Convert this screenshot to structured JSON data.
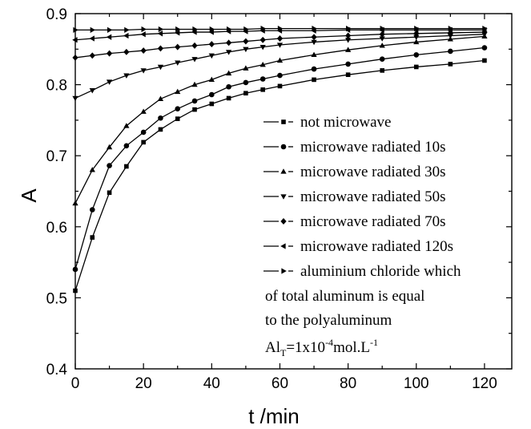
{
  "chart_data": {
    "type": "line",
    "xlabel": "t /min",
    "ylabel": "A",
    "xlim": [
      0,
      128
    ],
    "ylim": [
      0.4,
      0.9
    ],
    "xticks": [
      0,
      20,
      40,
      60,
      80,
      100,
      120
    ],
    "yticks": [
      0.4,
      0.5,
      0.6,
      0.7,
      0.8,
      0.9
    ],
    "x_tick_labels": [
      "0",
      "20",
      "40",
      "60",
      "80",
      "100",
      "120"
    ],
    "y_tick_labels": [
      "0.4",
      "0.5",
      "0.6",
      "0.7",
      "0.8",
      "0.9"
    ],
    "grid": false,
    "legend_position": "right",
    "series": [
      {
        "name": "not microwave",
        "marker": "square",
        "x": [
          0,
          5,
          10,
          15,
          20,
          25,
          30,
          35,
          40,
          45,
          50,
          55,
          60,
          70,
          80,
          90,
          100,
          110,
          120
        ],
        "values": [
          0.51,
          0.585,
          0.648,
          0.685,
          0.719,
          0.737,
          0.752,
          0.765,
          0.773,
          0.781,
          0.788,
          0.793,
          0.798,
          0.807,
          0.814,
          0.82,
          0.825,
          0.829,
          0.834
        ]
      },
      {
        "name": "microwave radiated 10s",
        "marker": "circle",
        "x": [
          0,
          5,
          10,
          15,
          20,
          25,
          30,
          35,
          40,
          45,
          50,
          55,
          60,
          70,
          80,
          90,
          100,
          110,
          120
        ],
        "values": [
          0.54,
          0.624,
          0.686,
          0.714,
          0.733,
          0.753,
          0.766,
          0.777,
          0.786,
          0.797,
          0.803,
          0.808,
          0.813,
          0.822,
          0.829,
          0.836,
          0.842,
          0.847,
          0.852
        ]
      },
      {
        "name": "microwave radiated 30s",
        "marker": "triangle-up",
        "x": [
          0,
          5,
          10,
          15,
          20,
          25,
          30,
          35,
          40,
          45,
          50,
          55,
          60,
          70,
          80,
          90,
          100,
          110,
          120
        ],
        "values": [
          0.633,
          0.68,
          0.712,
          0.742,
          0.762,
          0.78,
          0.79,
          0.8,
          0.807,
          0.816,
          0.823,
          0.828,
          0.834,
          0.842,
          0.849,
          0.855,
          0.86,
          0.864,
          0.868
        ]
      },
      {
        "name": "microwave radiated 50s",
        "marker": "triangle-down",
        "x": [
          0,
          5,
          10,
          15,
          20,
          25,
          30,
          35,
          40,
          45,
          50,
          55,
          60,
          70,
          80,
          90,
          100,
          110,
          120
        ],
        "values": [
          0.781,
          0.792,
          0.804,
          0.813,
          0.82,
          0.825,
          0.831,
          0.836,
          0.841,
          0.846,
          0.85,
          0.853,
          0.856,
          0.86,
          0.863,
          0.865,
          0.867,
          0.869,
          0.871
        ]
      },
      {
        "name": "microwave radiated 70s",
        "marker": "diamond",
        "x": [
          0,
          5,
          10,
          15,
          20,
          25,
          30,
          35,
          40,
          45,
          50,
          55,
          60,
          70,
          80,
          90,
          100,
          110,
          120
        ],
        "values": [
          0.838,
          0.841,
          0.844,
          0.846,
          0.848,
          0.851,
          0.853,
          0.855,
          0.857,
          0.859,
          0.861,
          0.863,
          0.865,
          0.867,
          0.869,
          0.871,
          0.872,
          0.873,
          0.874
        ]
      },
      {
        "name": "microwave radiated 120s",
        "marker": "triangle-left",
        "x": [
          0,
          5,
          10,
          15,
          20,
          25,
          30,
          35,
          40,
          45,
          50,
          55,
          60,
          70,
          80,
          90,
          100,
          110,
          120
        ],
        "values": [
          0.863,
          0.865,
          0.867,
          0.869,
          0.871,
          0.872,
          0.873,
          0.874,
          0.874,
          0.875,
          0.875,
          0.876,
          0.876,
          0.876,
          0.877,
          0.877,
          0.877,
          0.877,
          0.877
        ]
      },
      {
        "name": "aluminium chloride which of total aluminum is equal to the polyaluminum",
        "marker": "triangle-right",
        "x": [
          0,
          5,
          10,
          15,
          20,
          25,
          30,
          35,
          40,
          45,
          50,
          55,
          60,
          70,
          80,
          90,
          100,
          110,
          120
        ],
        "values": [
          0.877,
          0.877,
          0.877,
          0.877,
          0.878,
          0.878,
          0.878,
          0.878,
          0.878,
          0.878,
          0.878,
          0.879,
          0.879,
          0.879,
          0.879,
          0.879,
          0.879,
          0.879,
          0.879
        ]
      }
    ],
    "legend": {
      "entries": [
        "not microwave",
        "microwave radiated 10s",
        "microwave radiated 30s",
        "microwave radiated 50s",
        "microwave radiated 70s",
        "microwave radiated 120s",
        "aluminium chloride which"
      ],
      "extra_lines": [
        "of total aluminum is equal",
        "to the polyaluminum"
      ],
      "formula": {
        "base": "Al",
        "sub": "T",
        "mid": "=1x10",
        "sup": "-4",
        "unit": "mol.L",
        "unit_sup": "-1"
      }
    }
  }
}
